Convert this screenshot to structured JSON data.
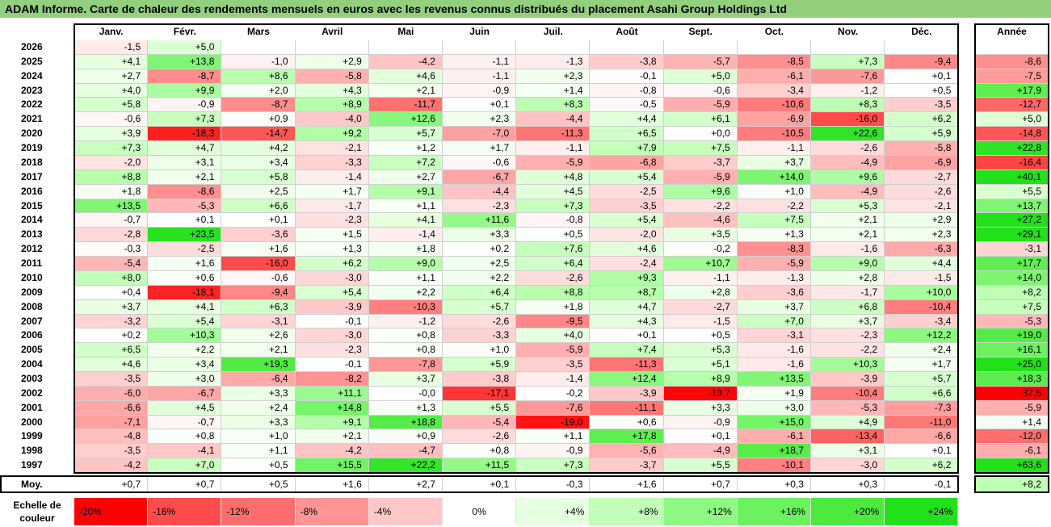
{
  "title": "ADAM Informe. Carte de chaleur des rendements mensuels en euros avec les revenus connus distribués du placement Asahi Group Holdings Ltd",
  "chart_data": {
    "type": "heatmap",
    "months": [
      "Janv.",
      "Févr.",
      "Mars",
      "Avril",
      "Mai",
      "Juin",
      "Juil.",
      "Août",
      "Sept.",
      "Oct.",
      "Nov.",
      "Déc."
    ],
    "annual_header": "Année",
    "rows": [
      {
        "year": "2026",
        "values": [
          "-1,5",
          "+5,0",
          "",
          "",
          "",
          "",
          "",
          "",
          "",
          "",
          "",
          ""
        ],
        "annual": ""
      },
      {
        "year": "2025",
        "values": [
          "+4,1",
          "+13,8",
          "-1,0",
          "+2,9",
          "-4,2",
          "-1,1",
          "-1,3",
          "-3,8",
          "-5,7",
          "-8,5",
          "+7,3",
          "-9,4"
        ],
        "annual": "-8,6"
      },
      {
        "year": "2024",
        "values": [
          "+2,7",
          "-8,7",
          "+8,6",
          "-5,8",
          "+4,6",
          "-1,1",
          "+2,3",
          "-0,1",
          "+5,0",
          "-6,1",
          "-7,6",
          "+0,1"
        ],
        "annual": "-7,5"
      },
      {
        "year": "2023",
        "values": [
          "+4,0",
          "+9,9",
          "+2,0",
          "+4,3",
          "+2,1",
          "-0,9",
          "+1,4",
          "-0,8",
          "-0,6",
          "-3,4",
          "-1,2",
          "+0,5"
        ],
        "annual": "+17,9"
      },
      {
        "year": "2022",
        "values": [
          "+5,8",
          "-0,9",
          "-8,7",
          "+8,9",
          "-11,7",
          "+0,1",
          "+8,3",
          "-0,5",
          "-5,9",
          "-10,6",
          "+8,3",
          "-3,5"
        ],
        "annual": "-12,7"
      },
      {
        "year": "2021",
        "values": [
          "-0,6",
          "+7,3",
          "+0,9",
          "-4,0",
          "+12,6",
          "+2,3",
          "-4,4",
          "+4,4",
          "+6,1",
          "-6,9",
          "-16,0",
          "+6,2"
        ],
        "annual": "+5,0"
      },
      {
        "year": "2020",
        "values": [
          "+3,9",
          "-18,3",
          "-14,7",
          "+9,2",
          "+5,7",
          "-7,0",
          "-11,3",
          "+6,5",
          "+0,0",
          "-10,5",
          "+22,6",
          "+5,9"
        ],
        "annual": "-14,8"
      },
      {
        "year": "2019",
        "values": [
          "+7,3",
          "+4,7",
          "+4,2",
          "-2,1",
          "+1,2",
          "+1,7",
          "-1,1",
          "+7,9",
          "+7,5",
          "-1,1",
          "-2,6",
          "-5,8"
        ],
        "annual": "+22,8"
      },
      {
        "year": "2018",
        "values": [
          "-2,0",
          "+3,1",
          "+3,4",
          "-3,3",
          "+7,2",
          "-0,6",
          "-5,9",
          "-6,8",
          "-3,7",
          "+3,7",
          "-4,9",
          "-6,9"
        ],
        "annual": "-16,4"
      },
      {
        "year": "2017",
        "values": [
          "+8,8",
          "+2,1",
          "+5,8",
          "-1,4",
          "+2,7",
          "-6,7",
          "+4,8",
          "+5,4",
          "-5,9",
          "+14,0",
          "+9,6",
          "-2,7"
        ],
        "annual": "+40,1"
      },
      {
        "year": "2016",
        "values": [
          "+1,8",
          "-8,6",
          "+2,5",
          "+1,7",
          "+9,1",
          "-4,4",
          "+4,5",
          "-2,5",
          "+9,6",
          "+1,0",
          "-4,9",
          "-2,6"
        ],
        "annual": "+5,5"
      },
      {
        "year": "2015",
        "values": [
          "+13,5",
          "-5,3",
          "+6,6",
          "-1,7",
          "+1,1",
          "-2,3",
          "+7,3",
          "-3,5",
          "-2,2",
          "-2,2",
          "+5,3",
          "-2,1"
        ],
        "annual": "+13,7"
      },
      {
        "year": "2014",
        "values": [
          "-0,7",
          "+0,1",
          "+0,1",
          "-2,3",
          "+4,1",
          "+11,6",
          "-0,8",
          "+5,4",
          "-4,6",
          "+7,5",
          "+2,1",
          "+2,9"
        ],
        "annual": "+27,2"
      },
      {
        "year": "2013",
        "values": [
          "-2,8",
          "+23,5",
          "-3,6",
          "+1,5",
          "-1,4",
          "+3,3",
          "+0,5",
          "-2,0",
          "+3,5",
          "+1,3",
          "+2,1",
          "+2,3"
        ],
        "annual": "+29,1"
      },
      {
        "year": "2012",
        "values": [
          "-0,3",
          "-2,5",
          "+1,6",
          "+1,3",
          "+1,8",
          "+0,2",
          "+7,6",
          "+4,6",
          "-0,2",
          "-8,3",
          "-1,6",
          "-6,3"
        ],
        "annual": "-3,1"
      },
      {
        "year": "2011",
        "values": [
          "-5,4",
          "+1,6",
          "-16,0",
          "+6,2",
          "+9,0",
          "+2,5",
          "+6,4",
          "-2,4",
          "+10,7",
          "-5,9",
          "+9,0",
          "+4,4"
        ],
        "annual": "+17,7"
      },
      {
        "year": "2010",
        "values": [
          "+8,0",
          "+0,6",
          "-0,6",
          "-3,0",
          "+1,1",
          "+2,2",
          "-2,6",
          "+9,3",
          "-1,1",
          "-1,3",
          "+2,8",
          "-1,5"
        ],
        "annual": "+14,0"
      },
      {
        "year": "2009",
        "values": [
          "+0,4",
          "-18,1",
          "-9,4",
          "+5,4",
          "+2,2",
          "+6,4",
          "+8,8",
          "+8,7",
          "+2,8",
          "-3,6",
          "-1,7",
          "+10,0"
        ],
        "annual": "+8,2"
      },
      {
        "year": "2008",
        "values": [
          "+3,7",
          "+4,1",
          "+6,3",
          "-3,9",
          "-10,3",
          "+5,7",
          "+1,8",
          "+4,7",
          "-2,7",
          "+3,7",
          "+6,8",
          "-10,4"
        ],
        "annual": "+7,5"
      },
      {
        "year": "2007",
        "values": [
          "-3,2",
          "+5,4",
          "-3,1",
          "-0,1",
          "-1,2",
          "-2,6",
          "-9,5",
          "+4,3",
          "-1,5",
          "+7,0",
          "+3,7",
          "-3,4"
        ],
        "annual": "-5,3"
      },
      {
        "year": "2006",
        "values": [
          "+0,2",
          "+10,3",
          "+2,6",
          "-3,0",
          "+0,8",
          "-3,3",
          "+4,0",
          "+0,1",
          "+0,5",
          "-3,1",
          "-2,3",
          "+12,2"
        ],
        "annual": "+19,0"
      },
      {
        "year": "2005",
        "values": [
          "+6,5",
          "+2,2",
          "+2,1",
          "-2,3",
          "+0,8",
          "+1,0",
          "-5,9",
          "+7,4",
          "+5,3",
          "-1,6",
          "-2,2",
          "+2,4"
        ],
        "annual": "+16,1"
      },
      {
        "year": "2004",
        "values": [
          "+4,6",
          "+3,4",
          "+19,3",
          "-0,1",
          "-7,8",
          "+5,9",
          "-3,5",
          "-11,3",
          "+5,1",
          "-1,6",
          "+10,3",
          "+1,7"
        ],
        "annual": "+25,0"
      },
      {
        "year": "2003",
        "values": [
          "-3,5",
          "+3,0",
          "-6,4",
          "-8,2",
          "+3,7",
          "-3,8",
          "-1,4",
          "+12,4",
          "+8,9",
          "+13,5",
          "-3,9",
          "+5,7"
        ],
        "annual": "+18,3"
      },
      {
        "year": "2002",
        "values": [
          "-6,0",
          "-6,7",
          "+3,3",
          "+11,1",
          "-0,0",
          "-17,1",
          "-0,2",
          "-3,9",
          "-19,7",
          "+1,9",
          "-10,4",
          "+6,6"
        ],
        "annual": "-37,5"
      },
      {
        "year": "2001",
        "values": [
          "-6,6",
          "+4,5",
          "+2,4",
          "+14,8",
          "+1,3",
          "+5,5",
          "-7,6",
          "-11,1",
          "+3,3",
          "+3,0",
          "-5,3",
          "-7,3"
        ],
        "annual": "-5,9"
      },
      {
        "year": "2000",
        "values": [
          "-7,1",
          "-0,7",
          "+3,3",
          "+9,1",
          "+18,8",
          "-5,4",
          "-19,0",
          "+0,6",
          "-0,9",
          "+15,0",
          "+4,9",
          "-11,0"
        ],
        "annual": "+1,4"
      },
      {
        "year": "1999",
        "values": [
          "-4,8",
          "+0,8",
          "+1,0",
          "+2,1",
          "+0,9",
          "-2,6",
          "+1,1",
          "+17,8",
          "+0,1",
          "-6,1",
          "-13,4",
          "-6,6"
        ],
        "annual": "-12,0"
      },
      {
        "year": "1998",
        "values": [
          "-3,5",
          "-4,1",
          "+1,1",
          "-4,2",
          "-4,7",
          "+0,8",
          "-0,9",
          "-5,6",
          "-4,9",
          "+18,7",
          "+3,1",
          "+0,1"
        ],
        "annual": "-6,1"
      },
      {
        "year": "1997",
        "values": [
          "-4,2",
          "+7,0",
          "+0,5",
          "+15,5",
          "+22,2",
          "+11,5",
          "+7,3",
          "-3,7",
          "+5,5",
          "-10,1",
          "-3,0",
          "+6,2"
        ],
        "annual": "+63,6"
      }
    ],
    "average": {
      "label": "Moy.",
      "values": [
        "+0,7",
        "+0,7",
        "+0,5",
        "+1,6",
        "+2,7",
        "+0,1",
        "-0,3",
        "+1,6",
        "+0,7",
        "+0,3",
        "+0,3",
        "-0,1"
      ],
      "annual": "+8,2"
    },
    "scale": {
      "label": "Echelle de couleur",
      "items": [
        {
          "text": "-20%",
          "color": "#ff0000"
        },
        {
          "text": "-16%",
          "color": "#ff4b4b"
        },
        {
          "text": "-12%",
          "color": "#ff6e6e"
        },
        {
          "text": "-8%",
          "color": "#ff9494"
        },
        {
          "text": "-4%",
          "color": "#ffc8c8"
        },
        {
          "text": "0%",
          "color": "#ffffff"
        },
        {
          "text": "+4%",
          "color": "#e6ffe0"
        },
        {
          "text": "+8%",
          "color": "#c2ffb8"
        },
        {
          "text": "+12%",
          "color": "#8ef883"
        },
        {
          "text": "+16%",
          "color": "#6cf25f"
        },
        {
          "text": "+20%",
          "color": "#4de93f"
        },
        {
          "text": "+24%",
          "color": "#22e11a"
        }
      ]
    }
  }
}
